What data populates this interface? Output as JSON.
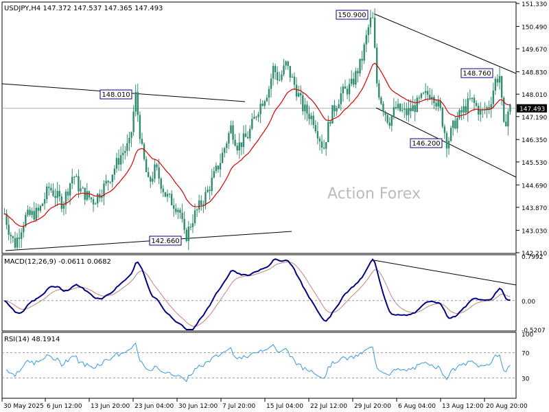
{
  "header": {
    "symbol_line": "USDJPY,H4  147.372 147.537 147.365 147.493"
  },
  "watermark": "Action Forex",
  "chart_data": [
    {
      "type": "candlestick",
      "panel": "price",
      "title": "USDJPY,H4",
      "ohlc_last": {
        "open": 147.372,
        "high": 147.537,
        "low": 147.365,
        "close": 147.493
      },
      "ylim": [
        142.21,
        151.33
      ],
      "y_ticks": [
        "151.330",
        "150.490",
        "149.670",
        "148.830",
        "148.010",
        "147.190",
        "146.350",
        "145.530",
        "144.690",
        "143.870",
        "143.030",
        "142.210"
      ],
      "current_price_label": "147.493",
      "x_ticks": [
        "30 May 2025",
        "6 Jun 12:00",
        "13 Jun 20:00",
        "23 Jun 04:00",
        "30 Jun 12:00",
        "7 Jul 20:00",
        "15 Jul 04:00",
        "22 Jul 12:00",
        "29 Jul 20:00",
        "6 Aug 04:00",
        "13 Aug 12:00",
        "20 Aug 20:00"
      ],
      "closes_anchor": [
        [
          0,
          144.1
        ],
        [
          12,
          143.0
        ],
        [
          20,
          142.5
        ],
        [
          35,
          143.5
        ],
        [
          55,
          143.7
        ],
        [
          70,
          144.6
        ],
        [
          90,
          144.0
        ],
        [
          105,
          145.1
        ],
        [
          115,
          144.5
        ],
        [
          135,
          144.1
        ],
        [
          155,
          144.8
        ],
        [
          175,
          145.8
        ],
        [
          188,
          146.2
        ],
        [
          196,
          148.0
        ],
        [
          205,
          146.0
        ],
        [
          215,
          144.7
        ],
        [
          225,
          145.3
        ],
        [
          240,
          144.3
        ],
        [
          260,
          143.8
        ],
        [
          268,
          142.7
        ],
        [
          280,
          143.5
        ],
        [
          300,
          144.4
        ],
        [
          320,
          145.6
        ],
        [
          335,
          146.8
        ],
        [
          345,
          146.1
        ],
        [
          360,
          146.5
        ],
        [
          375,
          147.5
        ],
        [
          390,
          148.2
        ],
        [
          397,
          149.0
        ],
        [
          405,
          148.5
        ],
        [
          415,
          149.1
        ],
        [
          430,
          148.2
        ],
        [
          440,
          147.5
        ],
        [
          455,
          147.1
        ],
        [
          470,
          146.0
        ],
        [
          480,
          147.2
        ],
        [
          495,
          148.0
        ],
        [
          510,
          148.3
        ],
        [
          525,
          149.2
        ],
        [
          535,
          150.4
        ],
        [
          541,
          150.9
        ],
        [
          548,
          148.3
        ],
        [
          556,
          147.6
        ],
        [
          565,
          147.0
        ],
        [
          575,
          147.5
        ],
        [
          590,
          147.3
        ],
        [
          605,
          147.6
        ],
        [
          615,
          147.9
        ],
        [
          628,
          148.1
        ],
        [
          640,
          147.4
        ],
        [
          650,
          146.2
        ],
        [
          660,
          146.9
        ],
        [
          670,
          147.3
        ],
        [
          685,
          147.8
        ],
        [
          700,
          147.3
        ],
        [
          712,
          147.6
        ],
        [
          720,
          148.5
        ],
        [
          727,
          148.7
        ],
        [
          732,
          146.7
        ],
        [
          740,
          147.5
        ]
      ],
      "annotations": [
        {
          "label": "150.900",
          "price": 150.9
        },
        {
          "label": "148.760",
          "price": 148.76
        },
        {
          "label": "148.010",
          "price": 148.01
        },
        {
          "label": "146.200",
          "price": 146.2
        },
        {
          "label": "142.660",
          "price": 142.66
        }
      ]
    },
    {
      "type": "line",
      "panel": "macd",
      "title": "MACD(12,26,9) -0.0611 0.0682",
      "ylim": [
        -0.5207,
        0.7992
      ],
      "y_ticks": [
        "0.7992",
        "0.00",
        "-0.5207"
      ]
    },
    {
      "type": "line",
      "panel": "rsi",
      "title": "RSI(14) 48.1914",
      "ylim": [
        0,
        100
      ],
      "y_ticks": [
        "100",
        "70",
        "30",
        "0"
      ]
    }
  ],
  "colors": {
    "candle": "#2e8b6e",
    "ema": "#d60000",
    "macd": "#000080",
    "signal": "#c08080",
    "rsi": "#3399dd",
    "trendline": "#000000",
    "label_border": "#000080",
    "grid": "#999999"
  }
}
